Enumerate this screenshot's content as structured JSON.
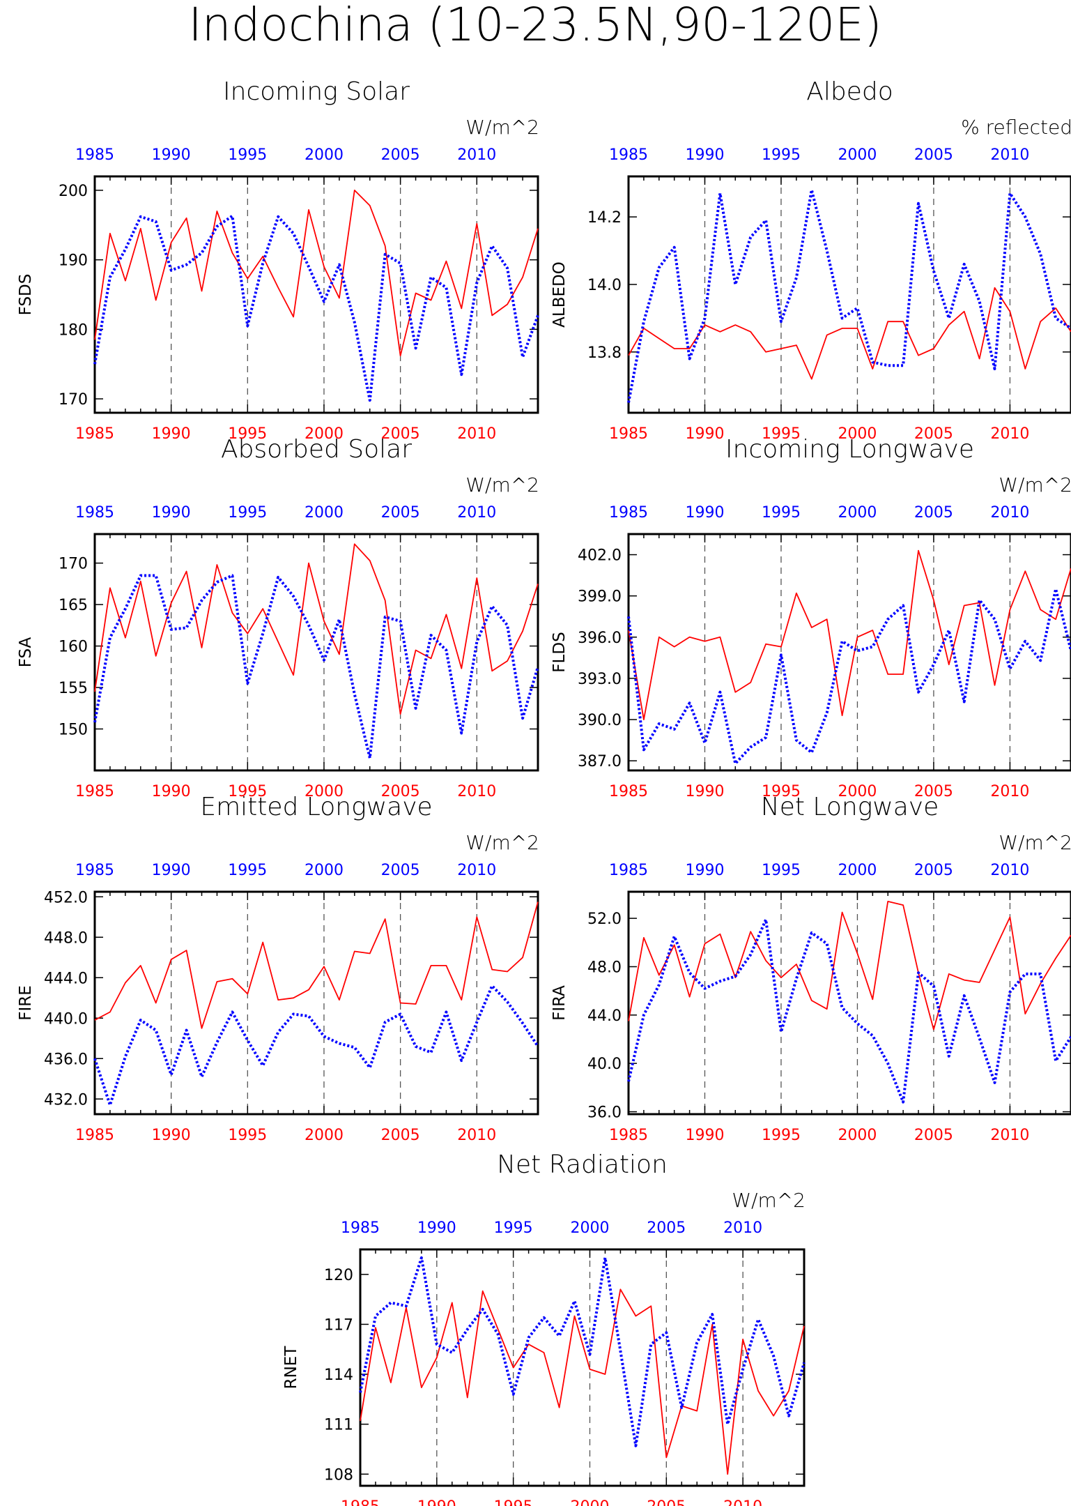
{
  "title": "Indochina (10-23.5N,90-120E)",
  "colors": {
    "red": "#ff0000",
    "blue": "#0000ff",
    "axis": "#000000",
    "grid": "#555555"
  },
  "x_tick_labels": [
    "1985",
    "1990",
    "1995",
    "2000",
    "2005",
    "2010"
  ],
  "chart_data": [
    {
      "id": "fsds",
      "type": "line",
      "title": "Incoming Solar",
      "units": "W/m^2",
      "ylabel": "FSDS",
      "xlim": [
        1985,
        2014
      ],
      "ylim": [
        168,
        202
      ],
      "yticks": [
        170,
        180,
        190,
        200
      ],
      "ytick_labels": [
        "170",
        "180",
        "190",
        "200"
      ],
      "grid": "dashed vertical lines every 5 years",
      "bottom_axis_color": "red",
      "top_axis_color": "blue",
      "x": [
        1985,
        1986,
        1987,
        1988,
        1989,
        1990,
        1991,
        1992,
        1993,
        1994,
        1995,
        1996,
        1997,
        1998,
        1999,
        2000,
        2001,
        2002,
        2003,
        2004,
        2005,
        2006,
        2007,
        2008,
        2009,
        2010,
        2011,
        2012,
        2013,
        2014
      ],
      "series": [
        {
          "color": "red",
          "style": "solid",
          "values": [
            178.5,
            193.8,
            187.0,
            194.5,
            184.2,
            192.5,
            196.0,
            185.5,
            197.0,
            191.0,
            187.3,
            190.5,
            186.0,
            181.8,
            197.2,
            189.0,
            184.5,
            200.0,
            197.8,
            192.0,
            176.2,
            185.2,
            184.2,
            189.8,
            183.0,
            195.2,
            182.0,
            183.6,
            187.5,
            194.5
          ]
        },
        {
          "color": "blue",
          "style": "dotted",
          "values": [
            175.0,
            187.5,
            191.5,
            196.2,
            195.5,
            188.5,
            189.3,
            191.0,
            194.8,
            196.3,
            180.5,
            189.5,
            196.2,
            193.8,
            189.0,
            184.0,
            189.3,
            181.0,
            169.8,
            190.8,
            189.5,
            177.3,
            187.5,
            186.0,
            173.5,
            186.7,
            192.0,
            188.8,
            176.0,
            182.0
          ]
        }
      ]
    },
    {
      "id": "albedo",
      "type": "line",
      "title": "Albedo",
      "units": "% reflected",
      "ylabel": "ALBEDO",
      "xlim": [
        1985,
        2014
      ],
      "ylim": [
        13.62,
        14.32
      ],
      "yticks": [
        13.8,
        14.0,
        14.2
      ],
      "ytick_labels": [
        "13.8",
        "14.0",
        "14.2"
      ],
      "grid": "dashed vertical lines every 5 years",
      "bottom_axis_color": "red",
      "top_axis_color": "blue",
      "x": [
        1985,
        1986,
        1987,
        1988,
        1989,
        1990,
        1991,
        1992,
        1993,
        1994,
        1995,
        1996,
        1997,
        1998,
        1999,
        2000,
        2001,
        2002,
        2003,
        2004,
        2005,
        2006,
        2007,
        2008,
        2009,
        2010,
        2011,
        2012,
        2013,
        2014
      ],
      "series": [
        {
          "color": "red",
          "style": "solid",
          "values": [
            13.79,
            13.87,
            13.84,
            13.81,
            13.81,
            13.88,
            13.86,
            13.88,
            13.86,
            13.8,
            13.81,
            13.82,
            13.72,
            13.85,
            13.87,
            13.87,
            13.75,
            13.89,
            13.89,
            13.79,
            13.81,
            13.88,
            13.92,
            13.78,
            13.99,
            13.92,
            13.75,
            13.89,
            13.93,
            13.86
          ]
        },
        {
          "color": "blue",
          "style": "dotted",
          "values": [
            13.65,
            13.89,
            14.05,
            14.11,
            13.78,
            13.9,
            14.27,
            14.0,
            14.14,
            14.19,
            13.89,
            14.02,
            14.28,
            14.1,
            13.9,
            13.93,
            13.77,
            13.76,
            13.76,
            14.24,
            14.04,
            13.9,
            14.06,
            13.95,
            13.75,
            14.27,
            14.2,
            14.09,
            13.9,
            13.87
          ]
        }
      ]
    },
    {
      "id": "fsa",
      "type": "line",
      "title": "Absorbed Solar",
      "units": "W/m^2",
      "ylabel": "FSA",
      "xlim": [
        1985,
        2014
      ],
      "ylim": [
        145,
        173.5
      ],
      "yticks": [
        150,
        155,
        160,
        165,
        170
      ],
      "ytick_labels": [
        "150",
        "155",
        "160",
        "165",
        "170"
      ],
      "grid": "dashed vertical lines every 5 years",
      "bottom_axis_color": "red",
      "top_axis_color": "blue",
      "x": [
        1985,
        1986,
        1987,
        1988,
        1989,
        1990,
        1991,
        1992,
        1993,
        1994,
        1995,
        1996,
        1997,
        1998,
        1999,
        2000,
        2001,
        2002,
        2003,
        2004,
        2005,
        2006,
        2007,
        2008,
        2009,
        2010,
        2011,
        2012,
        2013,
        2014
      ],
      "series": [
        {
          "color": "red",
          "style": "solid",
          "values": [
            154.5,
            167.0,
            161.0,
            167.8,
            158.8,
            165.2,
            169.0,
            159.8,
            169.8,
            164.0,
            161.5,
            164.5,
            160.5,
            156.5,
            170.0,
            163.0,
            159.0,
            172.3,
            170.3,
            165.5,
            151.8,
            159.5,
            158.5,
            163.8,
            157.3,
            168.2,
            157.0,
            158.2,
            161.8,
            167.5
          ]
        },
        {
          "color": "blue",
          "style": "dotted",
          "values": [
            150.8,
            161.0,
            164.5,
            168.5,
            168.5,
            162.0,
            162.2,
            165.5,
            167.7,
            168.5,
            155.5,
            161.5,
            168.3,
            166.0,
            162.5,
            158.3,
            163.2,
            154.2,
            146.5,
            163.5,
            163.0,
            152.5,
            161.3,
            159.5,
            149.5,
            160.5,
            164.8,
            162.5,
            151.3,
            157.5
          ]
        }
      ]
    },
    {
      "id": "flds",
      "type": "line",
      "title": "Incoming Longwave",
      "units": "W/m^2",
      "ylabel": "FLDS",
      "xlim": [
        1985,
        2014
      ],
      "ylim": [
        386.3,
        403.5
      ],
      "yticks": [
        387,
        390,
        393,
        396,
        399,
        402
      ],
      "ytick_labels": [
        "387.0",
        "390.0",
        "393.0",
        "396.0",
        "399.0",
        "402.0"
      ],
      "grid": "dashed vertical lines every 5 years",
      "bottom_axis_color": "red",
      "top_axis_color": "blue",
      "x": [
        1985,
        1986,
        1987,
        1988,
        1989,
        1990,
        1991,
        1992,
        1993,
        1994,
        1995,
        1996,
        1997,
        1998,
        1999,
        2000,
        2001,
        2002,
        2003,
        2004,
        2005,
        2006,
        2007,
        2008,
        2009,
        2010,
        2011,
        2012,
        2013,
        2014
      ],
      "series": [
        {
          "color": "red",
          "style": "solid",
          "values": [
            396.5,
            390.0,
            396.0,
            395.3,
            396.0,
            395.7,
            396.0,
            392.0,
            392.7,
            395.5,
            395.3,
            399.2,
            396.7,
            397.3,
            390.3,
            396.0,
            396.5,
            393.3,
            393.3,
            402.3,
            398.7,
            394.0,
            398.3,
            398.5,
            392.5,
            398.0,
            400.8,
            398.0,
            397.3,
            401.0
          ]
        },
        {
          "color": "blue",
          "style": "dotted",
          "values": [
            397.5,
            387.8,
            389.7,
            389.3,
            391.2,
            388.3,
            392.0,
            386.8,
            388.0,
            388.7,
            394.7,
            388.5,
            387.6,
            390.5,
            395.7,
            395.0,
            395.3,
            397.3,
            398.3,
            392.0,
            394.0,
            396.5,
            391.3,
            398.7,
            397.3,
            393.7,
            395.7,
            394.3,
            399.5,
            395.0
          ]
        }
      ]
    },
    {
      "id": "fire",
      "type": "line",
      "title": "Emitted Longwave",
      "units": "W/m^2",
      "ylabel": "FIRE",
      "xlim": [
        1985,
        2014
      ],
      "ylim": [
        430.5,
        452.5
      ],
      "yticks": [
        432,
        436,
        440,
        444,
        448,
        452
      ],
      "ytick_labels": [
        "432.0",
        "436.0",
        "440.0",
        "444.0",
        "448.0",
        "452.0"
      ],
      "grid": "dashed vertical lines every 5 years",
      "bottom_axis_color": "red",
      "top_axis_color": "blue",
      "x": [
        1985,
        1986,
        1987,
        1988,
        1989,
        1990,
        1991,
        1992,
        1993,
        1994,
        1995,
        1996,
        1997,
        1998,
        1999,
        2000,
        2001,
        2002,
        2003,
        2004,
        2005,
        2006,
        2007,
        2008,
        2009,
        2010,
        2011,
        2012,
        2013,
        2014
      ],
      "series": [
        {
          "color": "red",
          "style": "solid",
          "values": [
            439.8,
            440.6,
            443.5,
            445.2,
            441.5,
            445.8,
            446.7,
            439.0,
            443.6,
            443.9,
            442.4,
            447.5,
            441.8,
            442.0,
            442.8,
            445.1,
            441.8,
            446.6,
            446.4,
            449.8,
            441.5,
            441.4,
            445.2,
            445.2,
            441.8,
            450.0,
            444.8,
            444.6,
            446.0,
            451.5
          ]
        },
        {
          "color": "blue",
          "style": "dotted",
          "values": [
            436.0,
            431.4,
            436.2,
            439.8,
            438.8,
            434.4,
            438.8,
            434.2,
            437.6,
            440.6,
            437.8,
            435.3,
            438.6,
            440.4,
            440.2,
            438.2,
            437.5,
            437.1,
            435.1,
            439.6,
            440.4,
            437.2,
            436.6,
            440.6,
            435.8,
            439.6,
            443.2,
            441.6,
            439.5,
            437.2
          ]
        }
      ]
    },
    {
      "id": "fira",
      "type": "line",
      "title": "Net Longwave",
      "units": "W/m^2",
      "ylabel": "FIRA",
      "xlim": [
        1985,
        2014
      ],
      "ylim": [
        35.8,
        54.2
      ],
      "yticks": [
        36,
        40,
        44,
        48,
        52
      ],
      "ytick_labels": [
        "36.0",
        "40.0",
        "44.0",
        "48.0",
        "52.0"
      ],
      "grid": "dashed vertical lines every 5 years",
      "bottom_axis_color": "red",
      "top_axis_color": "blue",
      "x": [
        1985,
        1986,
        1987,
        1988,
        1989,
        1990,
        1991,
        1992,
        1993,
        1994,
        1995,
        1996,
        1997,
        1998,
        1999,
        2000,
        2001,
        2002,
        2003,
        2004,
        2005,
        2006,
        2007,
        2008,
        2009,
        2010,
        2011,
        2012,
        2013,
        2014
      ],
      "series": [
        {
          "color": "red",
          "style": "solid",
          "values": [
            43.5,
            50.4,
            47.3,
            49.8,
            45.5,
            49.9,
            50.7,
            47.1,
            50.9,
            48.5,
            47.1,
            48.2,
            45.2,
            44.5,
            52.5,
            49.1,
            45.3,
            53.4,
            53.1,
            47.5,
            42.8,
            47.4,
            46.9,
            46.7,
            49.4,
            52.1,
            44.1,
            46.6,
            48.7,
            50.6
          ]
        },
        {
          "color": "blue",
          "style": "dotted",
          "values": [
            38.5,
            44.0,
            46.5,
            50.5,
            47.5,
            46.2,
            46.8,
            47.2,
            49.0,
            51.9,
            42.6,
            47.0,
            50.8,
            49.9,
            44.6,
            43.3,
            42.3,
            40.0,
            36.8,
            47.5,
            46.4,
            40.6,
            45.6,
            42.1,
            38.4,
            45.9,
            47.4,
            47.4,
            40.2,
            42.2
          ]
        }
      ]
    },
    {
      "id": "rnet",
      "type": "line",
      "title": "Net Radiation",
      "units": "W/m^2",
      "ylabel": "RNET",
      "xlim": [
        1985,
        2014
      ],
      "ylim": [
        107.3,
        121.5
      ],
      "yticks": [
        108,
        111,
        114,
        117,
        120
      ],
      "ytick_labels": [
        "108",
        "111",
        "114",
        "117",
        "120"
      ],
      "grid": "dashed vertical lines every 5 years",
      "bottom_axis_color": "red",
      "top_axis_color": "blue",
      "x": [
        1985,
        1986,
        1987,
        1988,
        1989,
        1990,
        1991,
        1992,
        1993,
        1994,
        1995,
        1996,
        1997,
        1998,
        1999,
        2000,
        2001,
        2002,
        2003,
        2004,
        2005,
        2006,
        2007,
        2008,
        2009,
        2010,
        2011,
        2012,
        2013,
        2014
      ],
      "series": [
        {
          "color": "red",
          "style": "solid",
          "values": [
            111.2,
            116.8,
            113.5,
            118.0,
            113.2,
            115.0,
            118.3,
            112.6,
            119.0,
            116.7,
            114.4,
            115.8,
            115.3,
            112.0,
            117.5,
            114.3,
            114.0,
            119.1,
            117.5,
            118.1,
            109.0,
            112.1,
            111.8,
            117.0,
            108.0,
            116.1,
            113.0,
            111.5,
            113.0,
            116.9
          ]
        },
        {
          "color": "blue",
          "style": "dotted",
          "values": [
            112.9,
            117.5,
            118.3,
            118.1,
            121.0,
            115.8,
            115.3,
            116.7,
            117.9,
            116.4,
            112.8,
            116.2,
            117.4,
            116.3,
            118.4,
            115.2,
            121.0,
            115.4,
            109.7,
            115.8,
            116.5,
            112.0,
            115.9,
            117.6,
            111.0,
            114.3,
            117.3,
            115.1,
            111.5,
            114.7
          ]
        }
      ]
    }
  ]
}
